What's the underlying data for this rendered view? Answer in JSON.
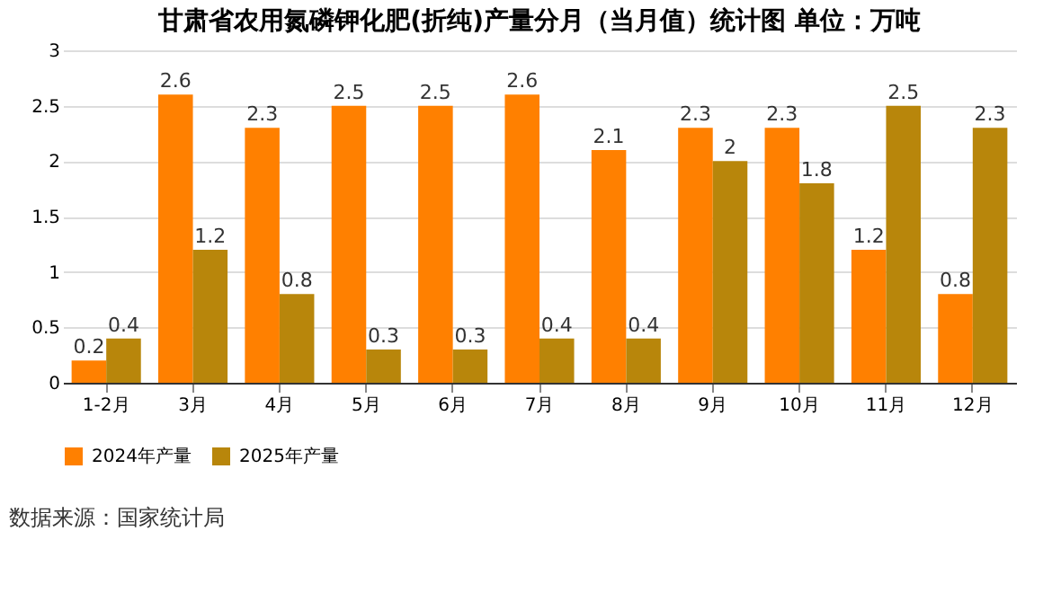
{
  "chart_data": {
    "type": "bar",
    "title": "甘肃省农用氮磷钾化肥(折纯)产量分月（当月值）统计图 单位：万吨",
    "categories": [
      "1-2月",
      "3月",
      "4月",
      "5月",
      "6月",
      "7月",
      "8月",
      "9月",
      "10月",
      "11月",
      "12月"
    ],
    "series": [
      {
        "name": "2024年产量",
        "color": "#ff8000",
        "values": [
          0.2,
          2.6,
          2.3,
          2.5,
          2.5,
          2.6,
          2.1,
          2.3,
          2.3,
          1.2,
          0.8
        ]
      },
      {
        "name": "2025年产量",
        "color": "#b8860b",
        "values": [
          0.4,
          1.2,
          0.8,
          0.3,
          0.3,
          0.4,
          0.4,
          2,
          1.8,
          2.5,
          2.3
        ]
      }
    ],
    "ylim": [
      0,
      3
    ],
    "yticks": [
      0,
      0.5,
      1,
      1.5,
      2,
      2.5,
      3
    ],
    "grid": "y",
    "legend": "bottom",
    "data_labels": true,
    "annotations": [
      "数据来源：国家统计局"
    ]
  }
}
